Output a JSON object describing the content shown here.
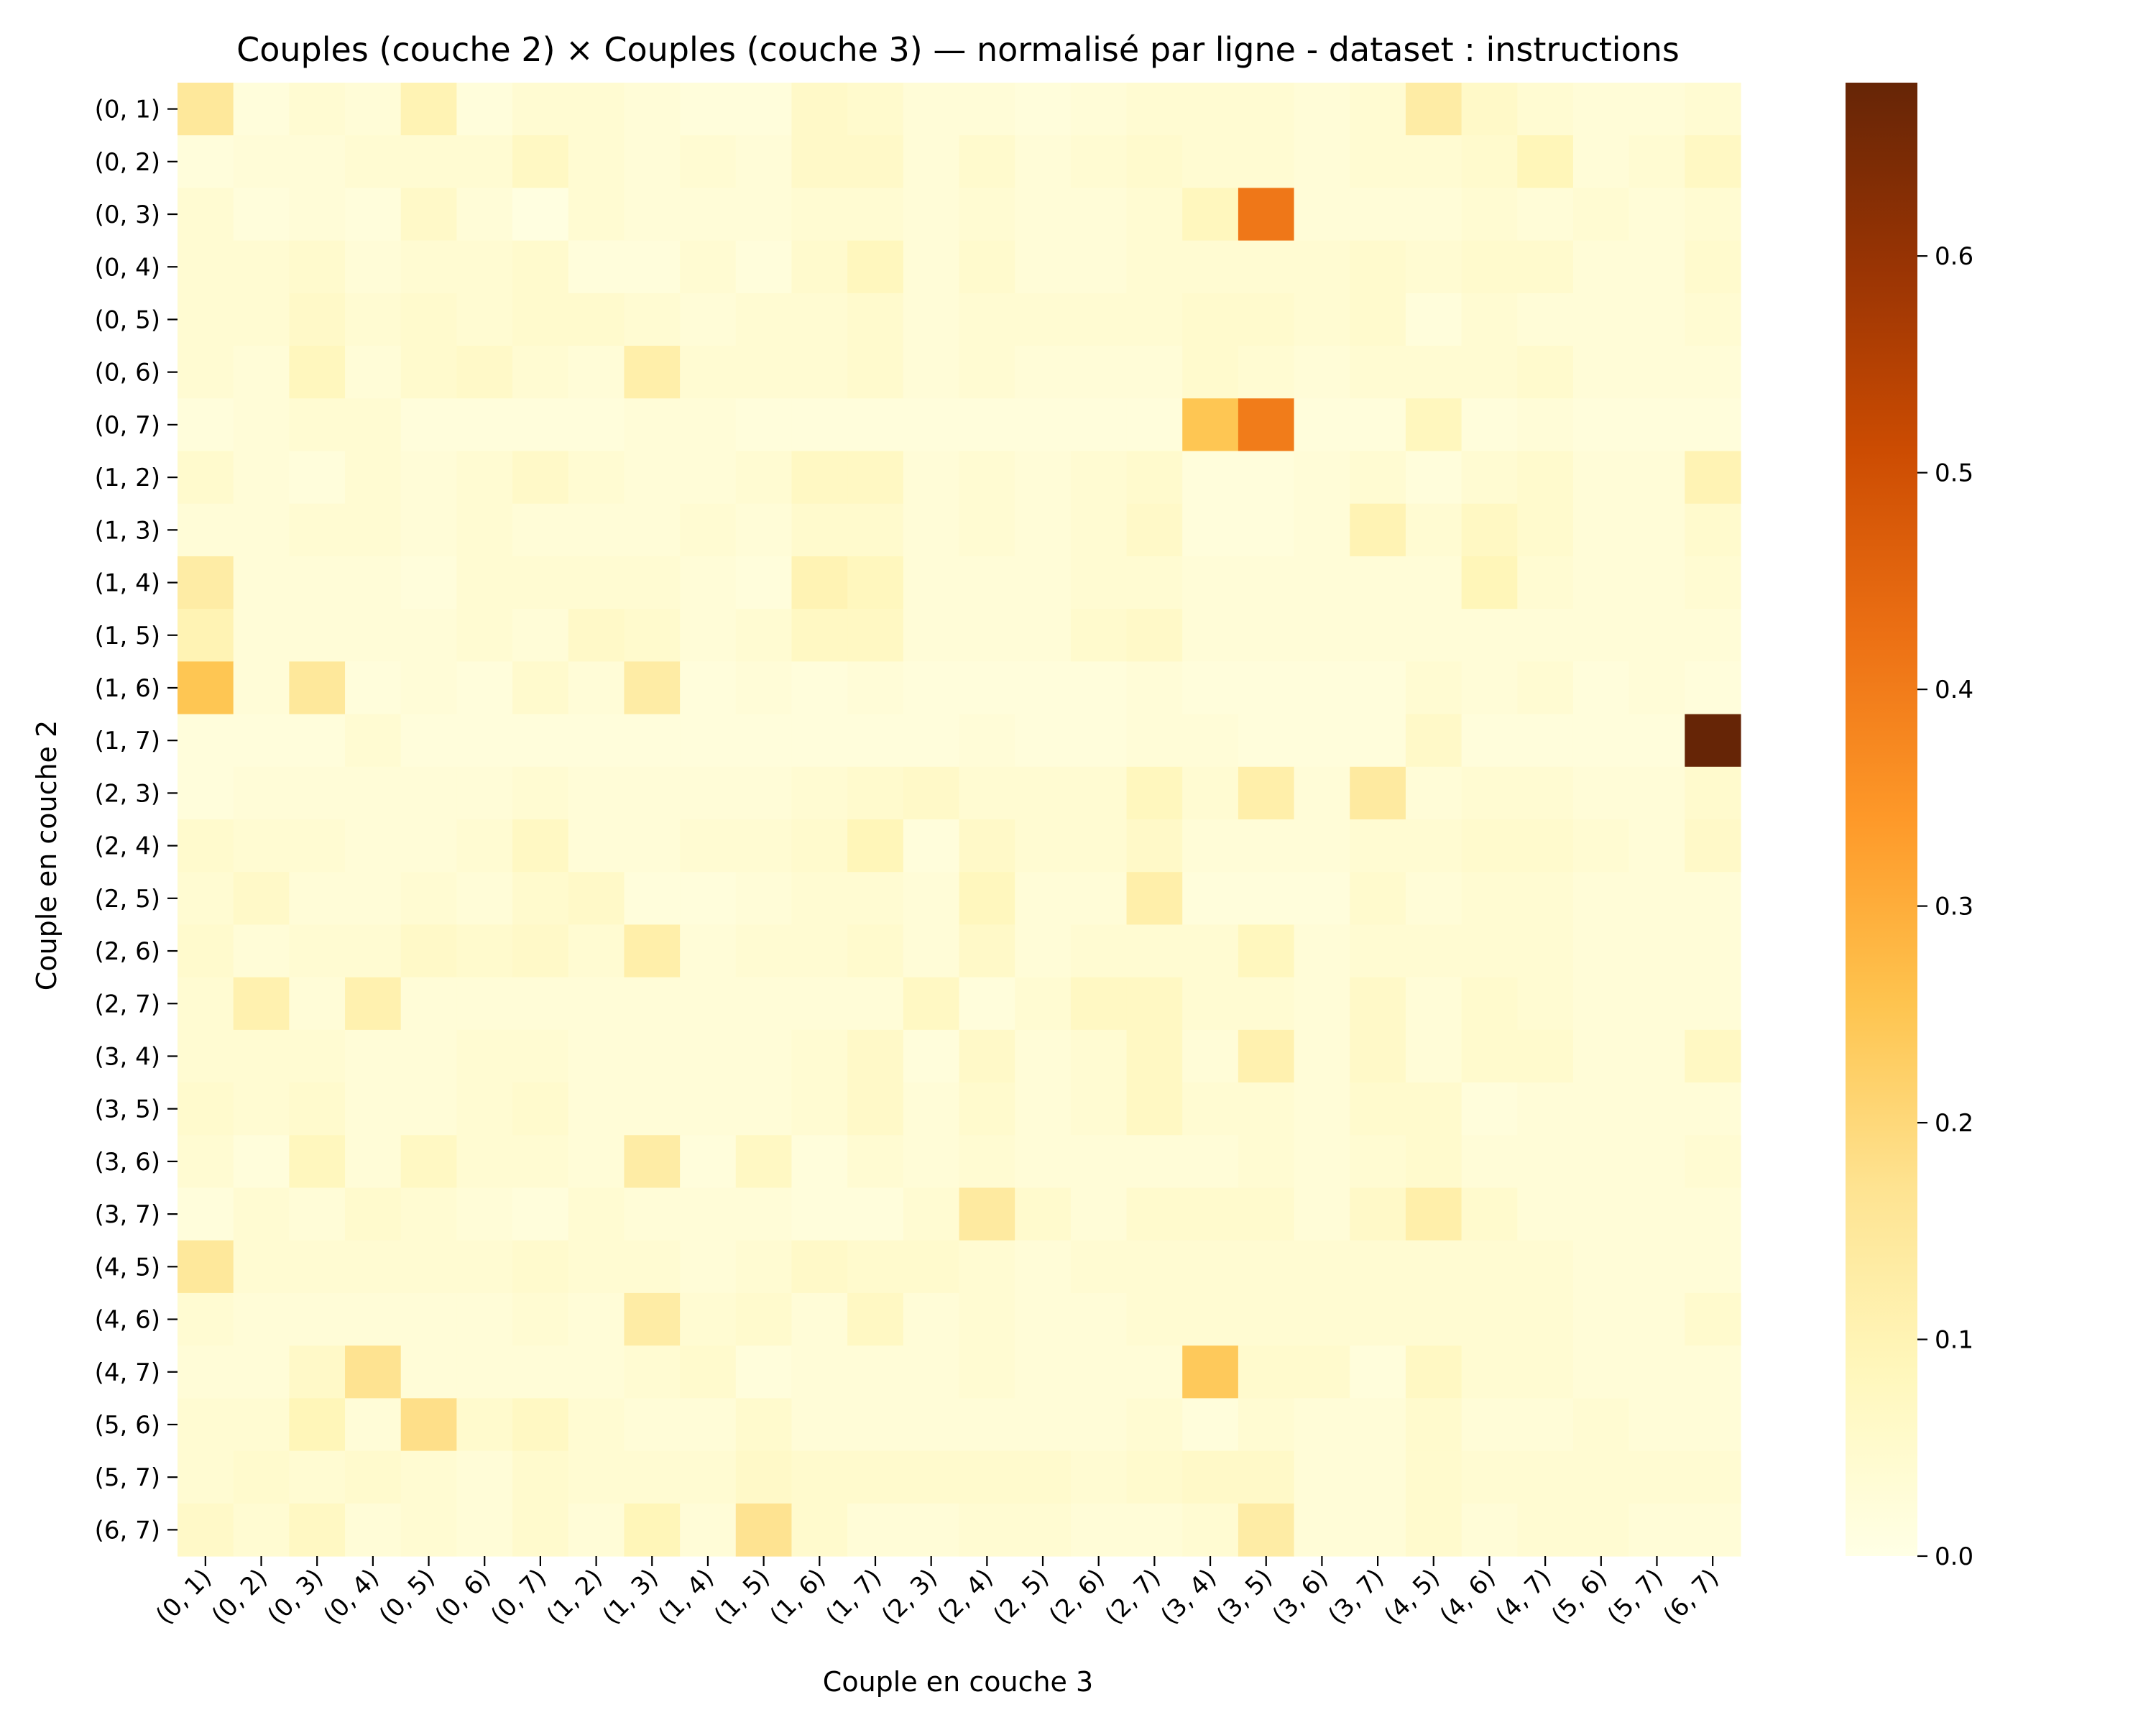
{
  "chart_data": {
    "type": "heatmap",
    "title": "Couples (couche 2)  ×  Couples (couche 3) — normalisé par ligne - dataset : instructions",
    "xlabel": "Couple en couche 3",
    "ylabel": "Couple en couche 2",
    "x_categories": [
      "(0, 1)",
      "(0, 2)",
      "(0, 3)",
      "(0, 4)",
      "(0, 5)",
      "(0, 6)",
      "(0, 7)",
      "(1, 2)",
      "(1, 3)",
      "(1, 4)",
      "(1, 5)",
      "(1, 6)",
      "(1, 7)",
      "(2, 3)",
      "(2, 4)",
      "(2, 5)",
      "(2, 6)",
      "(2, 7)",
      "(3, 4)",
      "(3, 5)",
      "(3, 6)",
      "(3, 7)",
      "(4, 5)",
      "(4, 6)",
      "(4, 7)",
      "(5, 6)",
      "(5, 7)",
      "(6, 7)"
    ],
    "y_categories": [
      "(0, 1)",
      "(0, 2)",
      "(0, 3)",
      "(0, 4)",
      "(0, 5)",
      "(0, 6)",
      "(0, 7)",
      "(1, 2)",
      "(1, 3)",
      "(1, 4)",
      "(1, 5)",
      "(1, 6)",
      "(1, 7)",
      "(2, 3)",
      "(2, 4)",
      "(2, 5)",
      "(2, 6)",
      "(2, 7)",
      "(3, 4)",
      "(3, 5)",
      "(3, 6)",
      "(3, 7)",
      "(4, 5)",
      "(4, 6)",
      "(4, 7)",
      "(5, 6)",
      "(5, 7)",
      "(6, 7)"
    ],
    "values": [
      [
        0.15,
        0.02,
        0.04,
        0.03,
        0.1,
        0.02,
        0.04,
        0.04,
        0.03,
        0.02,
        0.02,
        0.06,
        0.05,
        0.03,
        0.03,
        0.02,
        0.03,
        0.04,
        0.04,
        0.04,
        0.03,
        0.04,
        0.13,
        0.06,
        0.04,
        0.03,
        0.03,
        0.04
      ],
      [
        0.02,
        0.03,
        0.03,
        0.04,
        0.04,
        0.04,
        0.07,
        0.04,
        0.03,
        0.04,
        0.03,
        0.06,
        0.06,
        0.03,
        0.05,
        0.03,
        0.04,
        0.05,
        0.04,
        0.04,
        0.03,
        0.04,
        0.04,
        0.05,
        0.09,
        0.03,
        0.04,
        0.07
      ],
      [
        0.04,
        0.02,
        0.03,
        0.02,
        0.06,
        0.03,
        0.01,
        0.04,
        0.03,
        0.03,
        0.03,
        0.04,
        0.04,
        0.03,
        0.04,
        0.03,
        0.03,
        0.04,
        0.08,
        0.41,
        0.03,
        0.03,
        0.03,
        0.04,
        0.03,
        0.04,
        0.03,
        0.04
      ],
      [
        0.04,
        0.04,
        0.05,
        0.03,
        0.04,
        0.04,
        0.05,
        0.02,
        0.02,
        0.04,
        0.02,
        0.05,
        0.08,
        0.03,
        0.05,
        0.03,
        0.03,
        0.04,
        0.04,
        0.04,
        0.04,
        0.05,
        0.04,
        0.05,
        0.05,
        0.03,
        0.03,
        0.05
      ],
      [
        0.04,
        0.04,
        0.06,
        0.04,
        0.05,
        0.04,
        0.05,
        0.05,
        0.04,
        0.03,
        0.04,
        0.04,
        0.05,
        0.03,
        0.04,
        0.04,
        0.04,
        0.04,
        0.05,
        0.05,
        0.04,
        0.05,
        0.02,
        0.04,
        0.03,
        0.03,
        0.03,
        0.04
      ],
      [
        0.04,
        0.03,
        0.08,
        0.03,
        0.05,
        0.06,
        0.04,
        0.03,
        0.12,
        0.04,
        0.04,
        0.04,
        0.05,
        0.03,
        0.04,
        0.03,
        0.03,
        0.03,
        0.05,
        0.04,
        0.03,
        0.04,
        0.04,
        0.04,
        0.05,
        0.03,
        0.03,
        0.03
      ],
      [
        0.02,
        0.03,
        0.04,
        0.04,
        0.02,
        0.02,
        0.02,
        0.02,
        0.03,
        0.03,
        0.02,
        0.02,
        0.02,
        0.02,
        0.02,
        0.02,
        0.02,
        0.02,
        0.25,
        0.4,
        0.02,
        0.02,
        0.08,
        0.02,
        0.03,
        0.02,
        0.02,
        0.02
      ],
      [
        0.05,
        0.03,
        0.02,
        0.04,
        0.03,
        0.04,
        0.06,
        0.04,
        0.03,
        0.03,
        0.04,
        0.07,
        0.07,
        0.03,
        0.04,
        0.03,
        0.04,
        0.05,
        0.02,
        0.02,
        0.03,
        0.04,
        0.02,
        0.04,
        0.05,
        0.03,
        0.03,
        0.1
      ],
      [
        0.03,
        0.03,
        0.04,
        0.04,
        0.03,
        0.04,
        0.03,
        0.03,
        0.03,
        0.04,
        0.03,
        0.05,
        0.05,
        0.03,
        0.04,
        0.03,
        0.04,
        0.06,
        0.02,
        0.02,
        0.03,
        0.1,
        0.04,
        0.07,
        0.05,
        0.03,
        0.03,
        0.05
      ],
      [
        0.13,
        0.03,
        0.03,
        0.03,
        0.02,
        0.04,
        0.04,
        0.04,
        0.04,
        0.03,
        0.02,
        0.1,
        0.08,
        0.03,
        0.03,
        0.03,
        0.04,
        0.04,
        0.03,
        0.03,
        0.03,
        0.03,
        0.03,
        0.09,
        0.04,
        0.03,
        0.03,
        0.04
      ],
      [
        0.1,
        0.03,
        0.03,
        0.03,
        0.03,
        0.04,
        0.03,
        0.06,
        0.05,
        0.03,
        0.04,
        0.07,
        0.07,
        0.03,
        0.03,
        0.03,
        0.05,
        0.06,
        0.03,
        0.03,
        0.03,
        0.03,
        0.03,
        0.03,
        0.03,
        0.03,
        0.03,
        0.03
      ],
      [
        0.25,
        0.03,
        0.15,
        0.02,
        0.03,
        0.02,
        0.05,
        0.03,
        0.13,
        0.02,
        0.03,
        0.02,
        0.03,
        0.02,
        0.02,
        0.02,
        0.02,
        0.03,
        0.02,
        0.02,
        0.02,
        0.02,
        0.04,
        0.03,
        0.04,
        0.02,
        0.03,
        0.02
      ],
      [
        0.02,
        0.02,
        0.02,
        0.04,
        0.02,
        0.02,
        0.02,
        0.02,
        0.02,
        0.02,
        0.02,
        0.02,
        0.02,
        0.02,
        0.03,
        0.02,
        0.02,
        0.03,
        0.03,
        0.02,
        0.02,
        0.02,
        0.06,
        0.02,
        0.02,
        0.02,
        0.02,
        0.68
      ],
      [
        0.02,
        0.03,
        0.03,
        0.03,
        0.03,
        0.03,
        0.04,
        0.03,
        0.03,
        0.03,
        0.03,
        0.04,
        0.05,
        0.06,
        0.04,
        0.04,
        0.04,
        0.08,
        0.04,
        0.12,
        0.03,
        0.14,
        0.03,
        0.04,
        0.04,
        0.03,
        0.03,
        0.05
      ],
      [
        0.05,
        0.04,
        0.04,
        0.03,
        0.03,
        0.04,
        0.07,
        0.03,
        0.03,
        0.04,
        0.04,
        0.05,
        0.09,
        0.02,
        0.06,
        0.04,
        0.04,
        0.06,
        0.03,
        0.03,
        0.03,
        0.04,
        0.04,
        0.05,
        0.05,
        0.04,
        0.03,
        0.06
      ],
      [
        0.04,
        0.06,
        0.03,
        0.03,
        0.04,
        0.03,
        0.05,
        0.06,
        0.02,
        0.02,
        0.03,
        0.04,
        0.04,
        0.03,
        0.08,
        0.03,
        0.03,
        0.12,
        0.02,
        0.02,
        0.02,
        0.05,
        0.03,
        0.04,
        0.04,
        0.03,
        0.03,
        0.03
      ],
      [
        0.05,
        0.03,
        0.04,
        0.04,
        0.06,
        0.05,
        0.06,
        0.04,
        0.12,
        0.03,
        0.04,
        0.04,
        0.05,
        0.03,
        0.06,
        0.03,
        0.04,
        0.04,
        0.04,
        0.08,
        0.03,
        0.04,
        0.04,
        0.04,
        0.04,
        0.03,
        0.03,
        0.03
      ],
      [
        0.04,
        0.11,
        0.03,
        0.11,
        0.03,
        0.03,
        0.03,
        0.03,
        0.03,
        0.03,
        0.03,
        0.03,
        0.03,
        0.07,
        0.02,
        0.04,
        0.07,
        0.07,
        0.04,
        0.04,
        0.03,
        0.06,
        0.03,
        0.05,
        0.04,
        0.03,
        0.03,
        0.03
      ],
      [
        0.04,
        0.04,
        0.04,
        0.03,
        0.03,
        0.04,
        0.04,
        0.03,
        0.03,
        0.03,
        0.03,
        0.04,
        0.06,
        0.02,
        0.06,
        0.03,
        0.04,
        0.07,
        0.03,
        0.11,
        0.03,
        0.06,
        0.03,
        0.05,
        0.05,
        0.03,
        0.03,
        0.07
      ],
      [
        0.05,
        0.04,
        0.05,
        0.03,
        0.03,
        0.04,
        0.05,
        0.03,
        0.03,
        0.03,
        0.03,
        0.04,
        0.06,
        0.03,
        0.05,
        0.03,
        0.04,
        0.07,
        0.04,
        0.04,
        0.03,
        0.05,
        0.05,
        0.02,
        0.03,
        0.03,
        0.03,
        0.03
      ],
      [
        0.04,
        0.02,
        0.08,
        0.03,
        0.07,
        0.04,
        0.04,
        0.03,
        0.13,
        0.02,
        0.07,
        0.02,
        0.04,
        0.03,
        0.04,
        0.03,
        0.03,
        0.03,
        0.03,
        0.04,
        0.03,
        0.04,
        0.05,
        0.03,
        0.03,
        0.03,
        0.03,
        0.04
      ],
      [
        0.02,
        0.04,
        0.03,
        0.05,
        0.04,
        0.03,
        0.02,
        0.04,
        0.03,
        0.03,
        0.03,
        0.02,
        0.02,
        0.04,
        0.14,
        0.05,
        0.03,
        0.05,
        0.05,
        0.05,
        0.03,
        0.06,
        0.12,
        0.05,
        0.03,
        0.03,
        0.03,
        0.03
      ],
      [
        0.15,
        0.04,
        0.04,
        0.04,
        0.04,
        0.04,
        0.05,
        0.04,
        0.04,
        0.03,
        0.04,
        0.06,
        0.05,
        0.05,
        0.04,
        0.03,
        0.04,
        0.04,
        0.04,
        0.04,
        0.04,
        0.04,
        0.04,
        0.04,
        0.04,
        0.03,
        0.03,
        0.03
      ],
      [
        0.04,
        0.03,
        0.03,
        0.03,
        0.03,
        0.03,
        0.04,
        0.03,
        0.13,
        0.04,
        0.05,
        0.03,
        0.07,
        0.03,
        0.04,
        0.03,
        0.03,
        0.04,
        0.04,
        0.04,
        0.04,
        0.04,
        0.04,
        0.04,
        0.04,
        0.03,
        0.03,
        0.05
      ],
      [
        0.03,
        0.03,
        0.06,
        0.17,
        0.03,
        0.03,
        0.03,
        0.03,
        0.04,
        0.05,
        0.02,
        0.03,
        0.03,
        0.03,
        0.04,
        0.03,
        0.03,
        0.03,
        0.24,
        0.05,
        0.05,
        0.02,
        0.07,
        0.04,
        0.04,
        0.03,
        0.03,
        0.03
      ],
      [
        0.04,
        0.04,
        0.09,
        0.03,
        0.18,
        0.05,
        0.07,
        0.04,
        0.03,
        0.03,
        0.05,
        0.03,
        0.03,
        0.03,
        0.03,
        0.03,
        0.03,
        0.04,
        0.02,
        0.04,
        0.03,
        0.03,
        0.05,
        0.03,
        0.03,
        0.04,
        0.03,
        0.03
      ],
      [
        0.04,
        0.05,
        0.04,
        0.05,
        0.04,
        0.03,
        0.05,
        0.04,
        0.04,
        0.04,
        0.06,
        0.05,
        0.05,
        0.05,
        0.05,
        0.05,
        0.04,
        0.05,
        0.06,
        0.06,
        0.03,
        0.03,
        0.05,
        0.04,
        0.04,
        0.04,
        0.04,
        0.04
      ],
      [
        0.06,
        0.04,
        0.07,
        0.03,
        0.04,
        0.03,
        0.05,
        0.03,
        0.09,
        0.03,
        0.17,
        0.05,
        0.03,
        0.03,
        0.04,
        0.04,
        0.03,
        0.03,
        0.04,
        0.13,
        0.03,
        0.03,
        0.05,
        0.03,
        0.04,
        0.04,
        0.03,
        0.03
      ]
    ],
    "colorbar": {
      "colormap": "YlOrBr",
      "range": [
        0.0,
        0.68
      ],
      "ticks": [
        "0.0",
        "0.1",
        "0.2",
        "0.3",
        "0.4",
        "0.5",
        "0.6"
      ]
    },
    "grid": false
  }
}
